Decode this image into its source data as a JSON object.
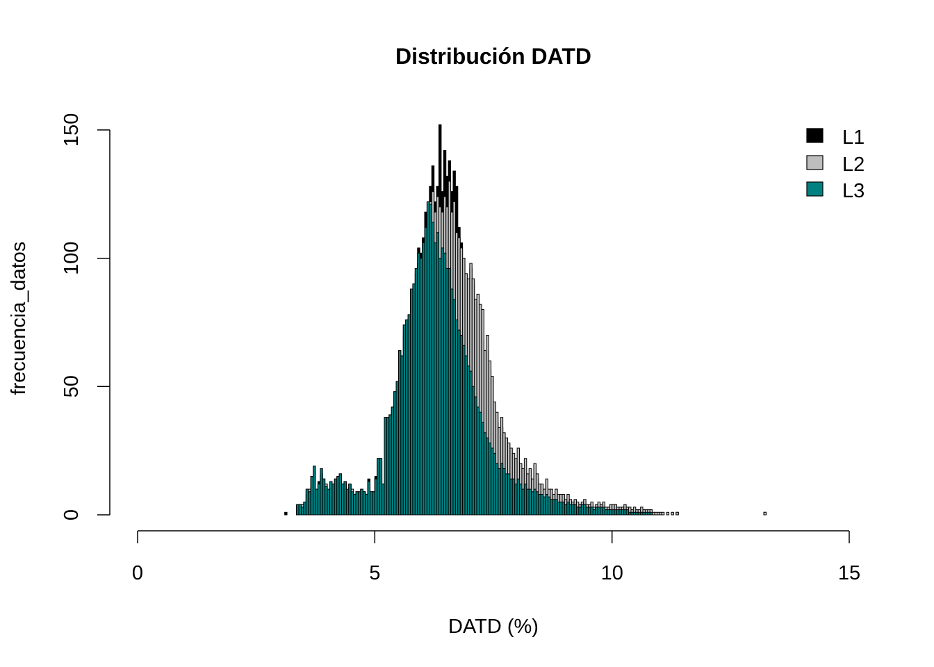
{
  "chart_data": {
    "type": "bar",
    "title": "Distribución DATD",
    "xlabel": "DATD (%)",
    "ylabel": "frecuencia_datos",
    "xlim": [
      0,
      15
    ],
    "ylim": [
      0,
      150
    ],
    "x_ticks": [
      "0",
      "5",
      "10",
      "15"
    ],
    "y_ticks": [
      "0",
      "50",
      "100",
      "150"
    ],
    "legend_position": "top-right",
    "grid": false,
    "bin_width": 0.05,
    "x_start": 3.1,
    "series": [
      {
        "name": "L1",
        "color": "#000000",
        "values": [
          1,
          0,
          0,
          0,
          0,
          4,
          4,
          4,
          5,
          10,
          10,
          15,
          12,
          10,
          13,
          16,
          14,
          12,
          10,
          13,
          12,
          14,
          15,
          16,
          12,
          13,
          10,
          12,
          10,
          8,
          9,
          9,
          10,
          9,
          8,
          14,
          9,
          9,
          15,
          22,
          22,
          12,
          38,
          38,
          39,
          42,
          48,
          52,
          64,
          62,
          74,
          76,
          78,
          88,
          90,
          96,
          104,
          102,
          108,
          118,
          122,
          128,
          136,
          122,
          128,
          152,
          126,
          142,
          132,
          138,
          126,
          134,
          128,
          112,
          106,
          100,
          92,
          88,
          96,
          90,
          82,
          78,
          74,
          68,
          60,
          64,
          56,
          48,
          40,
          36,
          30,
          34,
          28,
          26,
          24,
          22,
          20,
          18,
          22,
          16,
          14,
          18,
          12,
          14,
          12,
          16,
          14,
          10,
          10,
          8,
          12,
          8,
          8,
          6,
          8,
          6,
          6,
          6,
          4,
          6,
          5,
          4,
          4,
          4,
          3,
          4,
          5,
          3,
          3,
          4,
          2,
          3,
          4,
          3,
          4,
          2,
          2,
          3,
          3,
          3,
          2,
          2,
          2,
          3,
          2,
          2,
          1,
          2,
          1,
          1,
          2,
          1,
          1,
          1,
          1,
          0,
          0,
          0,
          0,
          0,
          0,
          0,
          0,
          0,
          0,
          1,
          0,
          0,
          0,
          0,
          0,
          0,
          0,
          0,
          0,
          0,
          0,
          0,
          0,
          0,
          0,
          0,
          0,
          0,
          0,
          0,
          0,
          0,
          0,
          0,
          0,
          0,
          0,
          0,
          0,
          0,
          0,
          0,
          0,
          0,
          0,
          0,
          1
        ]
      },
      {
        "name": "L2",
        "color": "#bebebe",
        "values": [
          0,
          0,
          0,
          0,
          0,
          3,
          3,
          4,
          5,
          8,
          10,
          12,
          10,
          10,
          12,
          14,
          12,
          12,
          10,
          12,
          12,
          13,
          14,
          14,
          12,
          12,
          10,
          12,
          10,
          8,
          9,
          8,
          10,
          9,
          8,
          12,
          9,
          9,
          14,
          20,
          21,
          12,
          36,
          37,
          38,
          40,
          46,
          50,
          62,
          60,
          70,
          74,
          76,
          86,
          88,
          94,
          98,
          100,
          106,
          112,
          118,
          122,
          126,
          118,
          124,
          120,
          118,
          124,
          120,
          130,
          118,
          122,
          110,
          108,
          104,
          100,
          94,
          92,
          98,
          92,
          84,
          86,
          82,
          80,
          64,
          70,
          60,
          54,
          44,
          40,
          34,
          38,
          32,
          30,
          28,
          26,
          24,
          22,
          26,
          20,
          18,
          22,
          16,
          18,
          14,
          20,
          16,
          12,
          12,
          10,
          14,
          10,
          10,
          8,
          10,
          8,
          8,
          8,
          6,
          8,
          6,
          5,
          6,
          5,
          4,
          5,
          6,
          4,
          4,
          5,
          3,
          4,
          5,
          4,
          5,
          3,
          3,
          4,
          4,
          4,
          3,
          3,
          3,
          4,
          3,
          3,
          2,
          3,
          2,
          2,
          3,
          2,
          2,
          2,
          2,
          1,
          1,
          1,
          1,
          1,
          0,
          1,
          0,
          1,
          0,
          1,
          0,
          0,
          0,
          0,
          0,
          0,
          0,
          0,
          0,
          0,
          0,
          0,
          0,
          0,
          0,
          0,
          0,
          0,
          0,
          0,
          0,
          0,
          0,
          0,
          0,
          0,
          0,
          0,
          0,
          0,
          0,
          0,
          0,
          0,
          0,
          0,
          1
        ]
      },
      {
        "name": "L3",
        "color": "#008080",
        "values": [
          0,
          0,
          0,
          0,
          0,
          4,
          4,
          3,
          5,
          10,
          9,
          15,
          19,
          10,
          12,
          18,
          14,
          11,
          10,
          13,
          12,
          14,
          15,
          16,
          12,
          13,
          10,
          12,
          9,
          8,
          9,
          9,
          10,
          9,
          8,
          13,
          9,
          9,
          14,
          22,
          22,
          12,
          38,
          38,
          39,
          42,
          48,
          52,
          64,
          62,
          74,
          76,
          78,
          88,
          90,
          96,
          102,
          100,
          106,
          112,
          122,
          121,
          114,
          106,
          110,
          100,
          104,
          102,
          96,
          96,
          88,
          84,
          76,
          72,
          70,
          66,
          62,
          58,
          56,
          50,
          46,
          42,
          40,
          36,
          32,
          30,
          28,
          26,
          24,
          20,
          18,
          20,
          18,
          16,
          16,
          14,
          14,
          12,
          14,
          12,
          10,
          12,
          10,
          10,
          9,
          10,
          9,
          8,
          8,
          7,
          8,
          7,
          6,
          6,
          6,
          5,
          5,
          5,
          4,
          5,
          4,
          4,
          4,
          3,
          3,
          4,
          4,
          3,
          3,
          3,
          2,
          3,
          3,
          3,
          3,
          2,
          2,
          2,
          2,
          2,
          2,
          2,
          2,
          2,
          2,
          1,
          1,
          1,
          1,
          1,
          1,
          1,
          1,
          1,
          1,
          0,
          0,
          0,
          0,
          0,
          0,
          0,
          0,
          0,
          0,
          0,
          0,
          0,
          0,
          0,
          0,
          0,
          0,
          0,
          0,
          0,
          0,
          0,
          0,
          0,
          0,
          0,
          0,
          0,
          0,
          0,
          0,
          0,
          0,
          0,
          0,
          0,
          0,
          0,
          0,
          0,
          0,
          0,
          0,
          0,
          0,
          0,
          0
        ]
      }
    ]
  }
}
